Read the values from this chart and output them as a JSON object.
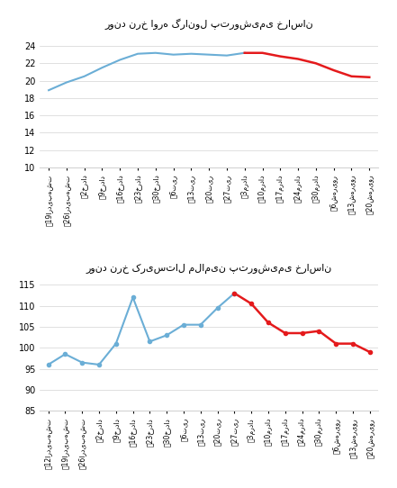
{
  "chart1": {
    "title": "روند نرخ اوره گرانول پتروشیمی خراسان",
    "xlabels": [
      "ؒ19اردیبهشت",
      "ؒ26اردیبهشت",
      "ؒ2خرداد",
      "ؒ9خرداد",
      "ؒ16خرداد",
      "ؒ23خرداد",
      "ؒ30خرداد",
      "ؒ6تیر",
      "ؒ13تیر",
      "ؒ20تیر",
      "ؒ27تیر",
      "ؒ3مرداد",
      "ؒ10مرداد",
      "ؒ17مرداد",
      "ؒ24مرداد",
      "ؒ30مرداد",
      "ؒ6شهریور",
      "ؒ13شهریور",
      "ؒ20شهریور"
    ],
    "blue_values": [
      18.9,
      19.8,
      20.5,
      21.5,
      22.4,
      23.1,
      23.2,
      23.0,
      23.1,
      23.0,
      22.9,
      23.2
    ],
    "red_values": [
      23.2,
      23.2,
      22.8,
      22.5,
      22.0,
      21.2,
      20.5,
      20.4
    ],
    "blue_count": 12,
    "ylim": [
      10,
      25
    ],
    "yticks": [
      10,
      12,
      14,
      16,
      18,
      20,
      22,
      24
    ],
    "blue_color": "#6baed6",
    "red_color": "#e41a1c"
  },
  "chart2": {
    "title": "روند نرخ کریستال ملامین پتروشیمی خراسان",
    "xlabels": [
      "ؒ12اردیبهشت",
      "ؒ19اردیبهشت",
      "ؒ26اردیبهشت",
      "ؒ2خرداد",
      "ؒ9خرداد",
      "ؒ16خرداد",
      "ؒ23خرداد",
      "ؒ30خرداد",
      "ؒ6تیر",
      "ؒ13تیر",
      "ؒ20تیر",
      "ؒ27تیر",
      "ؒ3مرداد",
      "ؒ10مرداد",
      "ؒ17مرداد",
      "ؒ24مرداد",
      "ؒ30مرداد",
      "ؒ6شهریور",
      "ؒ13شهریور",
      "ؒ20شهریور"
    ],
    "blue_values": [
      96,
      98.5,
      96.5,
      96,
      101,
      112,
      101.5,
      103,
      105.5,
      105.5,
      109.5,
      113
    ],
    "red_values": [
      113,
      110.5,
      106,
      103.5,
      103.5,
      104,
      101,
      101,
      99
    ],
    "blue_count": 12,
    "ylim": [
      85,
      116
    ],
    "yticks": [
      85,
      90,
      95,
      100,
      105,
      110,
      115
    ],
    "blue_color": "#6baed6",
    "red_color": "#e41a1c"
  }
}
